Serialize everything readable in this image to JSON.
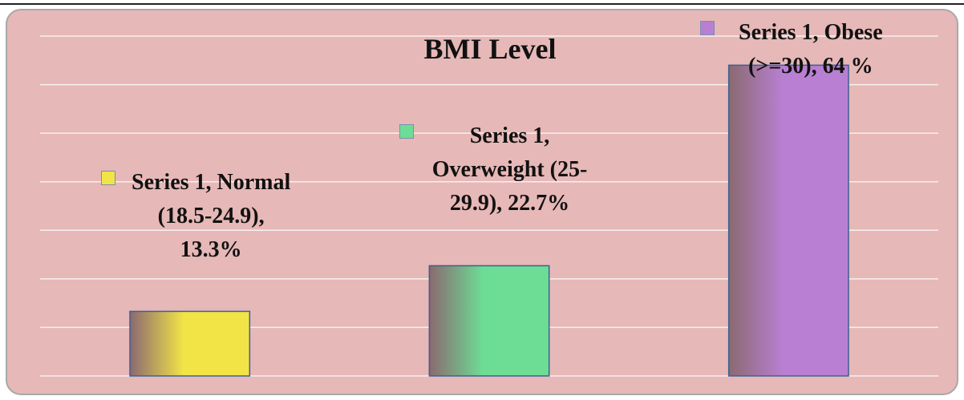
{
  "chart_data": {
    "type": "bar",
    "title": "BMI Level",
    "series_name": "Series 1",
    "label_separator": ", ",
    "categories": [
      "Normal (18.5-24.9)",
      "Overweight (25-29.9)",
      "Obese (>=30)"
    ],
    "values": [
      13.3,
      22.7,
      64
    ],
    "value_labels": [
      "13.3%",
      "22.7%",
      "64 %"
    ],
    "colors": [
      "#f2e447",
      "#6ddd95",
      "#b97fd2"
    ],
    "ylim": [
      0,
      70
    ],
    "yticks": [
      0,
      10,
      20,
      30,
      40,
      50,
      60,
      70
    ],
    "grid": true
  }
}
